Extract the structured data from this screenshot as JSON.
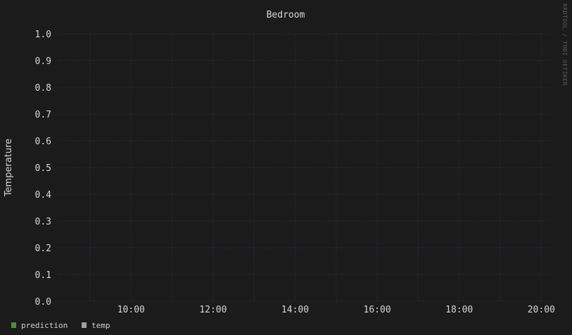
{
  "chart_data": {
    "type": "line",
    "title": "Bedroom",
    "ylabel": "Temperature",
    "xlabel": "",
    "ylim": [
      0,
      1
    ],
    "y_ticks": [
      "0.0",
      "0.1",
      "0.2",
      "0.3",
      "0.4",
      "0.5",
      "0.6",
      "0.7",
      "0.8",
      "0.9",
      "1.0"
    ],
    "x_ticks": [
      "10:00",
      "12:00",
      "14:00",
      "16:00",
      "18:00",
      "20:00"
    ],
    "grid": true,
    "legend_placement": "bottom-left",
    "series": [
      {
        "name": "prediction",
        "color": "#4c8c3c",
        "values": []
      },
      {
        "name": "temp",
        "color": "#a0a0a0",
        "values": []
      }
    ]
  },
  "watermark": "RRDTOOL / TOBI OETIKER",
  "colors": {
    "background": "#1b1b1b",
    "grid": "#1f3a5a",
    "text": "#d6d6d6"
  }
}
